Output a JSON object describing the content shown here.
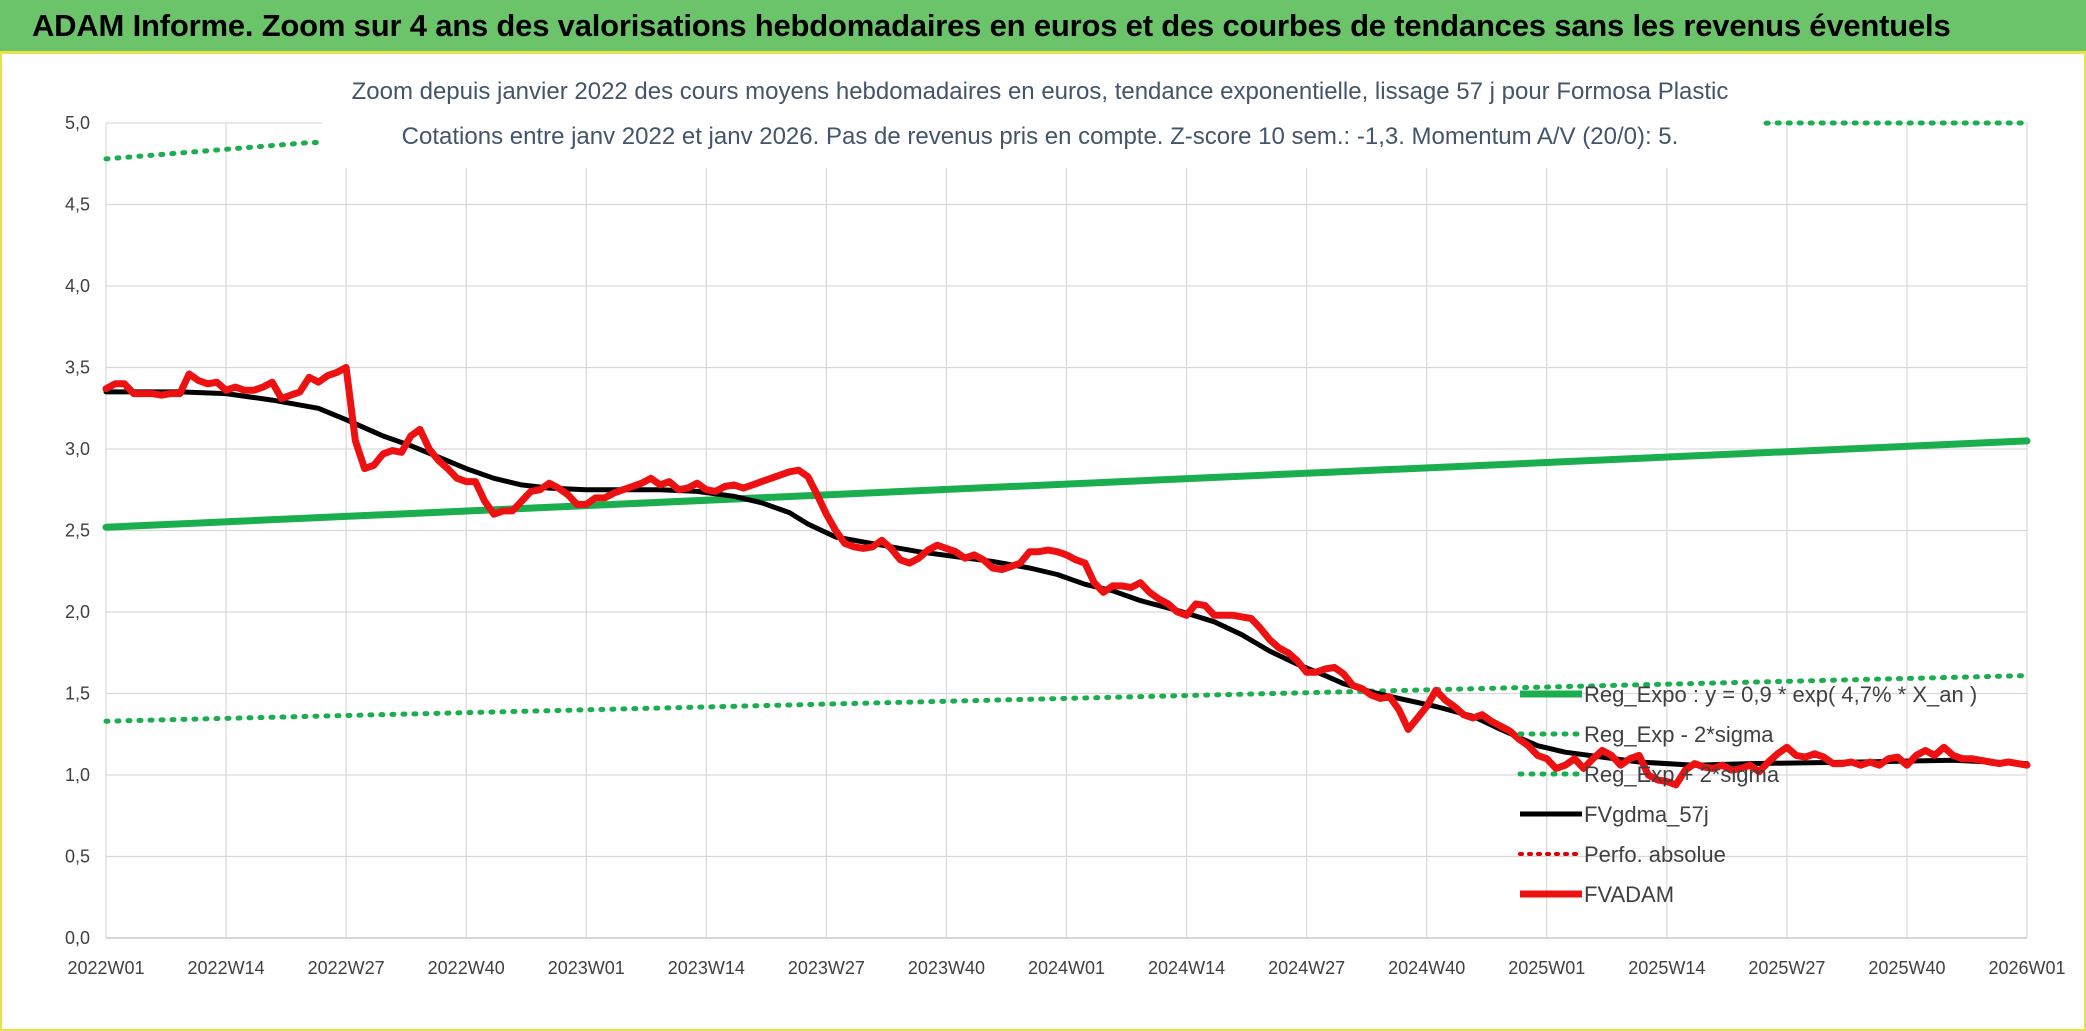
{
  "banner": {
    "title": "ADAM Informe. Zoom sur 4 ans des valorisations hebdomadaires en euros et des courbes de tendances sans les revenus éventuels"
  },
  "colors": {
    "banner_bg": "#6cc46a",
    "banner_border": "#e8e24a",
    "reg_expo": "#1aae4f",
    "sigma": "#1aae4f",
    "fvgdma": "#000000",
    "perfo": "#e00000",
    "fvadam": "#ee1111",
    "grid": "#d9d9d9"
  },
  "chart_data": {
    "type": "line",
    "title": "Zoom depuis janvier 2022 des cours moyens hebdomadaires en euros, tendance exponentielle, lissage 57 j pour Formosa Plastic",
    "subtitle": "Cotations entre janv 2022 et janv 2026. Pas de revenus pris en compte. Z-score 10 sem.: -1,3. Momentum A/V (20/0): 5.",
    "xlabel": "",
    "ylabel": "",
    "ylim": [
      0,
      5
    ],
    "y_ticks": [
      "0,0",
      "0,5",
      "1,0",
      "1,5",
      "2,0",
      "2,5",
      "3,0",
      "3,5",
      "4,0",
      "4,5",
      "5,0"
    ],
    "x_tick_labels": [
      "2022W01",
      "2022W14",
      "2022W27",
      "2022W40",
      "2023W01",
      "2023W14",
      "2023W27",
      "2023W40",
      "2024W01",
      "2024W14",
      "2024W27",
      "2024W40",
      "2025W01",
      "2025W14",
      "2025W27",
      "2025W40",
      "2026W01"
    ],
    "x_range_weeks": [
      0,
      208
    ],
    "legend_position": "bottom-right",
    "series": [
      {
        "name": "Reg_Expo : y = 0,9 * exp( 4,7% *  X_an )",
        "style": "solid-thick",
        "points": [
          [
            0,
            2.52
          ],
          [
            208,
            3.05
          ]
        ]
      },
      {
        "name": "Reg_Exp - 2*sigma",
        "style": "dotted",
        "points": [
          [
            0,
            1.33
          ],
          [
            208,
            1.61
          ]
        ]
      },
      {
        "name": "Reg_Exp + 2*sigma",
        "style": "dotted",
        "points": [
          [
            0,
            4.78
          ],
          [
            22,
            4.88
          ],
          [
            181,
            5.0
          ],
          [
            208,
            5.0
          ]
        ]
      },
      {
        "name": "FVgdma_57j",
        "style": "solid",
        "points": [
          [
            0,
            3.35
          ],
          [
            8,
            3.35
          ],
          [
            13,
            3.34
          ],
          [
            18,
            3.3
          ],
          [
            23,
            3.25
          ],
          [
            26,
            3.18
          ],
          [
            30,
            3.08
          ],
          [
            33,
            3.02
          ],
          [
            36,
            2.95
          ],
          [
            39,
            2.88
          ],
          [
            42,
            2.82
          ],
          [
            45,
            2.78
          ],
          [
            48,
            2.76
          ],
          [
            52,
            2.75
          ],
          [
            60,
            2.75
          ],
          [
            64,
            2.74
          ],
          [
            68,
            2.71
          ],
          [
            71,
            2.67
          ],
          [
            74,
            2.61
          ],
          [
            76,
            2.54
          ],
          [
            79,
            2.46
          ],
          [
            82,
            2.43
          ],
          [
            85,
            2.4
          ],
          [
            88,
            2.37
          ],
          [
            92,
            2.34
          ],
          [
            96,
            2.31
          ],
          [
            100,
            2.27
          ],
          [
            103,
            2.23
          ],
          [
            106,
            2.17
          ],
          [
            109,
            2.13
          ],
          [
            112,
            2.07
          ],
          [
            116,
            2.01
          ],
          [
            120,
            1.94
          ],
          [
            123,
            1.86
          ],
          [
            126,
            1.76
          ],
          [
            129,
            1.68
          ],
          [
            132,
            1.61
          ],
          [
            134,
            1.56
          ],
          [
            137,
            1.51
          ],
          [
            140,
            1.47
          ],
          [
            144,
            1.42
          ],
          [
            148,
            1.36
          ],
          [
            151,
            1.28
          ],
          [
            155,
            1.18
          ],
          [
            158,
            1.14
          ],
          [
            162,
            1.11
          ],
          [
            166,
            1.08
          ],
          [
            172,
            1.06
          ],
          [
            178,
            1.07
          ],
          [
            190,
            1.08
          ],
          [
            200,
            1.09
          ],
          [
            208,
            1.07
          ]
        ]
      },
      {
        "name": "Perfo. absolue",
        "style": "dotted",
        "points": []
      },
      {
        "name": "FVADAM",
        "style": "solid-thick",
        "points": [
          [
            0,
            3.37
          ],
          [
            1,
            3.4
          ],
          [
            2,
            3.4
          ],
          [
            3,
            3.34
          ],
          [
            5,
            3.34
          ],
          [
            6,
            3.33
          ],
          [
            7,
            3.34
          ],
          [
            8,
            3.34
          ],
          [
            9,
            3.46
          ],
          [
            10,
            3.42
          ],
          [
            11,
            3.4
          ],
          [
            12,
            3.41
          ],
          [
            13,
            3.36
          ],
          [
            14,
            3.38
          ],
          [
            15,
            3.36
          ],
          [
            16,
            3.36
          ],
          [
            17,
            3.38
          ],
          [
            18,
            3.41
          ],
          [
            19,
            3.31
          ],
          [
            20,
            3.33
          ],
          [
            21,
            3.35
          ],
          [
            22,
            3.44
          ],
          [
            23,
            3.41
          ],
          [
            24,
            3.45
          ],
          [
            25,
            3.47
          ],
          [
            26,
            3.5
          ],
          [
            27,
            3.05
          ],
          [
            28,
            2.88
          ],
          [
            29,
            2.9
          ],
          [
            30,
            2.97
          ],
          [
            31,
            2.99
          ],
          [
            32,
            2.98
          ],
          [
            33,
            3.08
          ],
          [
            34,
            3.12
          ],
          [
            35,
            3.0
          ],
          [
            36,
            2.93
          ],
          [
            37,
            2.88
          ],
          [
            38,
            2.82
          ],
          [
            39,
            2.8
          ],
          [
            40,
            2.8
          ],
          [
            41,
            2.68
          ],
          [
            42,
            2.6
          ],
          [
            43,
            2.62
          ],
          [
            44,
            2.62
          ],
          [
            45,
            2.68
          ],
          [
            46,
            2.74
          ],
          [
            47,
            2.75
          ],
          [
            48,
            2.79
          ],
          [
            49,
            2.76
          ],
          [
            50,
            2.72
          ],
          [
            51,
            2.66
          ],
          [
            52,
            2.66
          ],
          [
            53,
            2.7
          ],
          [
            54,
            2.7
          ],
          [
            55,
            2.73
          ],
          [
            56,
            2.75
          ],
          [
            57,
            2.77
          ],
          [
            58,
            2.79
          ],
          [
            59,
            2.82
          ],
          [
            60,
            2.78
          ],
          [
            61,
            2.8
          ],
          [
            62,
            2.75
          ],
          [
            63,
            2.76
          ],
          [
            64,
            2.79
          ],
          [
            65,
            2.75
          ],
          [
            66,
            2.74
          ],
          [
            67,
            2.77
          ],
          [
            68,
            2.78
          ],
          [
            69,
            2.76
          ],
          [
            70,
            2.78
          ],
          [
            71,
            2.8
          ],
          [
            72,
            2.82
          ],
          [
            73,
            2.84
          ],
          [
            74,
            2.86
          ],
          [
            75,
            2.87
          ],
          [
            76,
            2.83
          ],
          [
            77,
            2.72
          ],
          [
            78,
            2.6
          ],
          [
            79,
            2.5
          ],
          [
            80,
            2.42
          ],
          [
            81,
            2.4
          ],
          [
            82,
            2.39
          ],
          [
            83,
            2.4
          ],
          [
            84,
            2.44
          ],
          [
            85,
            2.39
          ],
          [
            86,
            2.32
          ],
          [
            87,
            2.3
          ],
          [
            88,
            2.33
          ],
          [
            89,
            2.38
          ],
          [
            90,
            2.41
          ],
          [
            91,
            2.39
          ],
          [
            92,
            2.37
          ],
          [
            93,
            2.33
          ],
          [
            94,
            2.35
          ],
          [
            95,
            2.32
          ],
          [
            96,
            2.27
          ],
          [
            97,
            2.26
          ],
          [
            98,
            2.28
          ],
          [
            99,
            2.3
          ],
          [
            100,
            2.37
          ],
          [
            101,
            2.37
          ],
          [
            102,
            2.38
          ],
          [
            103,
            2.37
          ],
          [
            104,
            2.35
          ],
          [
            105,
            2.32
          ],
          [
            106,
            2.3
          ],
          [
            107,
            2.18
          ],
          [
            108,
            2.12
          ],
          [
            109,
            2.16
          ],
          [
            110,
            2.16
          ],
          [
            111,
            2.15
          ],
          [
            112,
            2.18
          ],
          [
            113,
            2.12
          ],
          [
            114,
            2.08
          ],
          [
            115,
            2.05
          ],
          [
            116,
            2.0
          ],
          [
            117,
            1.98
          ],
          [
            118,
            2.05
          ],
          [
            119,
            2.04
          ],
          [
            120,
            1.98
          ],
          [
            121,
            1.98
          ],
          [
            122,
            1.98
          ],
          [
            123,
            1.97
          ],
          [
            124,
            1.96
          ],
          [
            125,
            1.9
          ],
          [
            126,
            1.83
          ],
          [
            127,
            1.78
          ],
          [
            128,
            1.75
          ],
          [
            129,
            1.7
          ],
          [
            130,
            1.63
          ],
          [
            131,
            1.63
          ],
          [
            132,
            1.65
          ],
          [
            133,
            1.66
          ],
          [
            134,
            1.62
          ],
          [
            135,
            1.55
          ],
          [
            136,
            1.53
          ],
          [
            137,
            1.49
          ],
          [
            138,
            1.47
          ],
          [
            139,
            1.48
          ],
          [
            140,
            1.4
          ],
          [
            141,
            1.28
          ],
          [
            142,
            1.35
          ],
          [
            143,
            1.42
          ],
          [
            144,
            1.52
          ],
          [
            145,
            1.46
          ],
          [
            146,
            1.42
          ],
          [
            147,
            1.37
          ],
          [
            148,
            1.35
          ],
          [
            149,
            1.37
          ],
          [
            150,
            1.33
          ],
          [
            151,
            1.3
          ],
          [
            152,
            1.27
          ],
          [
            153,
            1.22
          ],
          [
            154,
            1.18
          ],
          [
            155,
            1.12
          ],
          [
            156,
            1.1
          ],
          [
            157,
            1.04
          ],
          [
            158,
            1.06
          ],
          [
            159,
            1.1
          ],
          [
            160,
            1.04
          ],
          [
            161,
            1.1
          ],
          [
            162,
            1.15
          ],
          [
            163,
            1.12
          ],
          [
            164,
            1.06
          ],
          [
            165,
            1.1
          ],
          [
            166,
            1.12
          ],
          [
            167,
            1.0
          ],
          [
            168,
            0.97
          ],
          [
            169,
            0.96
          ],
          [
            170,
            0.94
          ],
          [
            171,
            1.03
          ],
          [
            172,
            1.07
          ],
          [
            173,
            1.05
          ],
          [
            174,
            1.04
          ],
          [
            175,
            1.06
          ],
          [
            176,
            1.03
          ],
          [
            177,
            1.04
          ],
          [
            178,
            1.06
          ],
          [
            179,
            1.02
          ],
          [
            180,
            1.08
          ],
          [
            181,
            1.13
          ],
          [
            182,
            1.17
          ],
          [
            183,
            1.12
          ],
          [
            184,
            1.11
          ],
          [
            185,
            1.13
          ],
          [
            186,
            1.11
          ],
          [
            187,
            1.07
          ],
          [
            188,
            1.07
          ],
          [
            189,
            1.08
          ],
          [
            190,
            1.06
          ],
          [
            191,
            1.08
          ],
          [
            192,
            1.06
          ],
          [
            193,
            1.1
          ],
          [
            194,
            1.11
          ],
          [
            195,
            1.06
          ],
          [
            196,
            1.12
          ],
          [
            197,
            1.15
          ],
          [
            198,
            1.12
          ],
          [
            199,
            1.17
          ],
          [
            200,
            1.12
          ],
          [
            201,
            1.1
          ],
          [
            202,
            1.1
          ],
          [
            203,
            1.09
          ],
          [
            204,
            1.08
          ],
          [
            205,
            1.07
          ],
          [
            206,
            1.08
          ],
          [
            207,
            1.07
          ],
          [
            208,
            1.06
          ]
        ]
      }
    ]
  }
}
